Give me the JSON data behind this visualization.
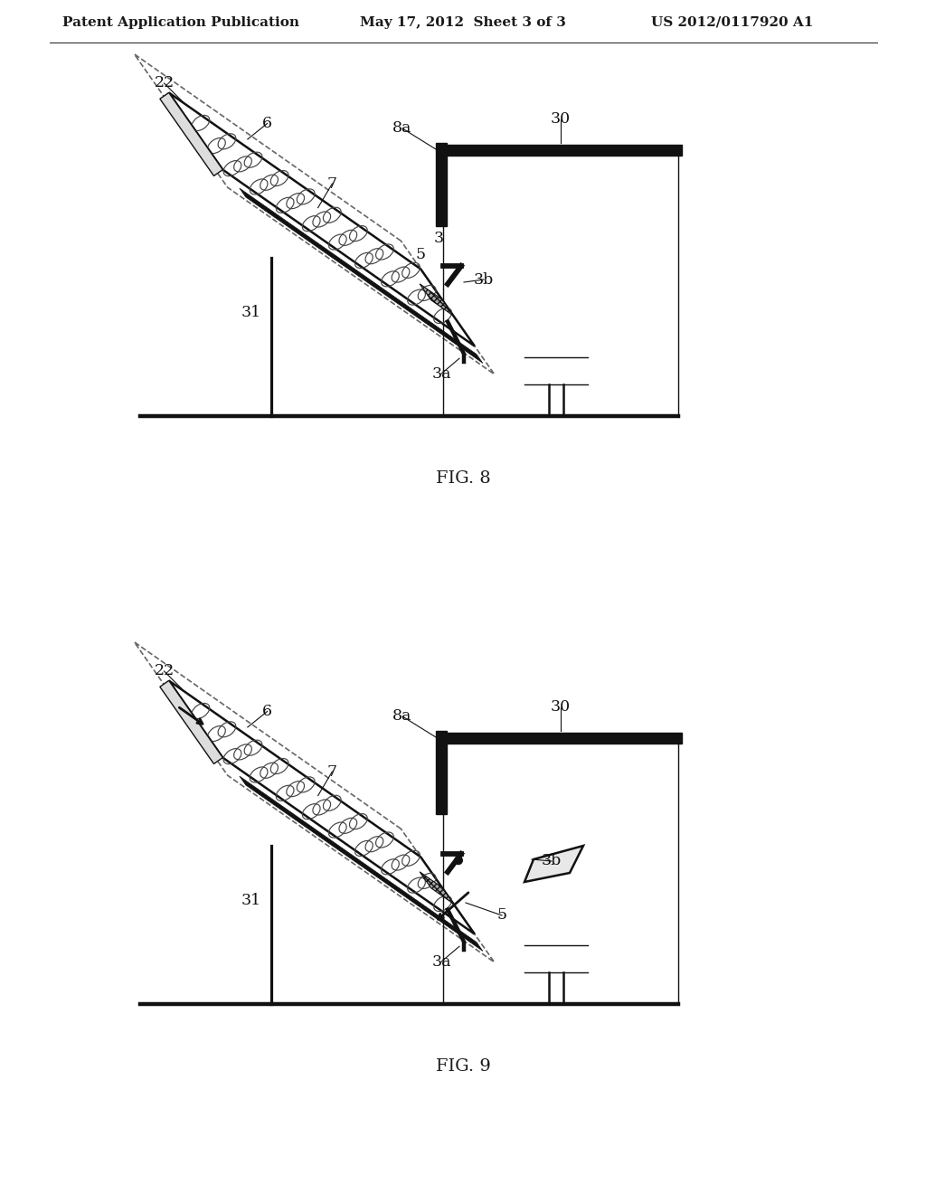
{
  "header_left": "Patent Application Publication",
  "header_center": "May 17, 2012  Sheet 3 of 3",
  "header_right": "US 2012/0117920 A1",
  "fig8_label": "FIG. 8",
  "fig9_label": "FIG. 9",
  "bg_color": "#ffffff",
  "line_color": "#1a1a1a",
  "dark_line": "#111111",
  "gray_line": "#555555"
}
